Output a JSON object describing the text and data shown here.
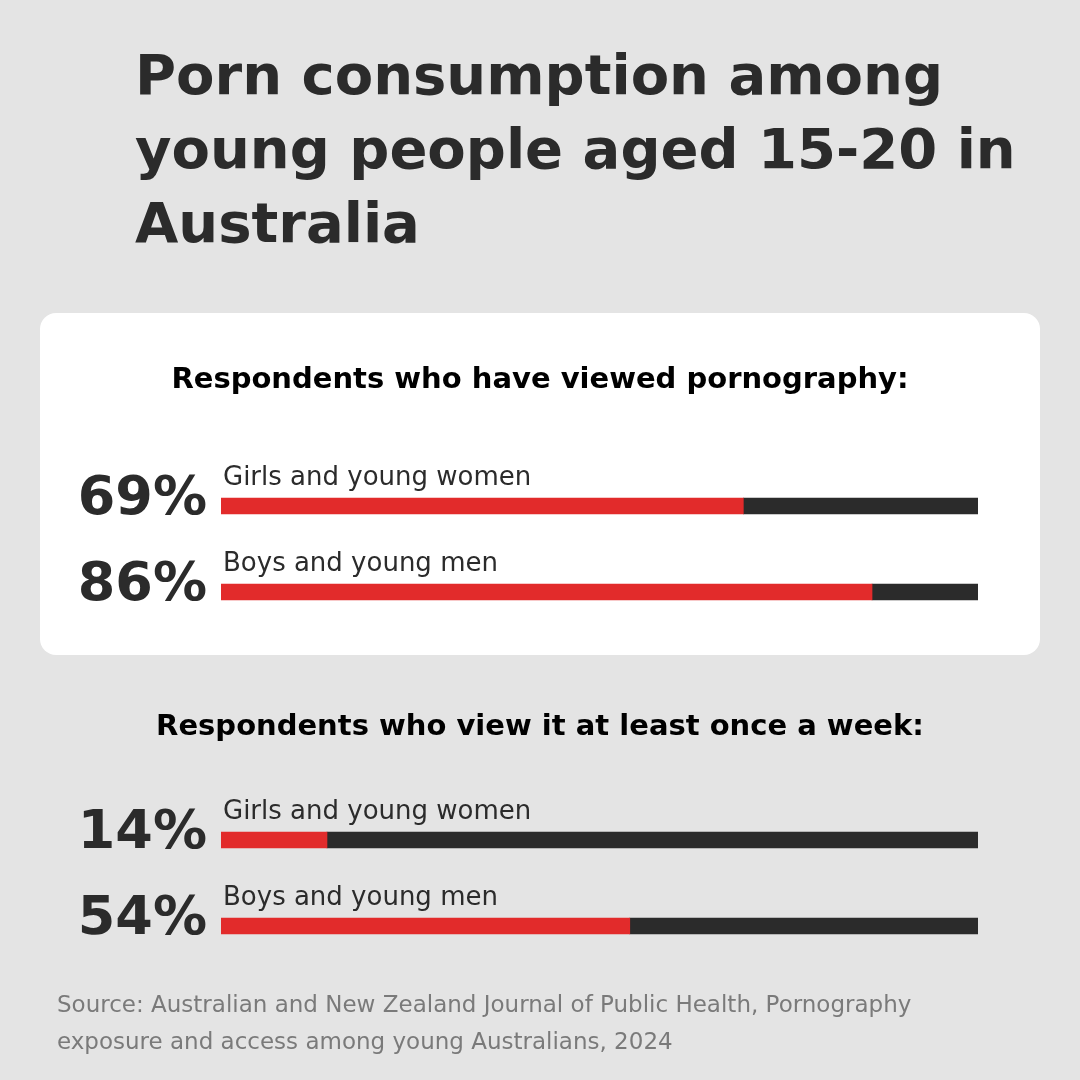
{
  "chart_data": [
    {
      "type": "bar",
      "title": "Porn consumption among young people aged 15-20 in Australia",
      "subtitle": "Respondents who have viewed pornography:",
      "orientation": "horizontal",
      "stacked": true,
      "categories": [
        "Girls and young women",
        "Boys and young men"
      ],
      "xlim": [
        0,
        100
      ],
      "tick_labels": false,
      "series": [
        {
          "color": "#e22b2b",
          "values": [
            69,
            86
          ],
          "value_labels": [
            "69%",
            "86%"
          ]
        },
        {
          "color": "#2b2b2b",
          "values": [
            31,
            14
          ]
        }
      ]
    },
    {
      "type": "bar",
      "title": "Respondents who view it at least once a week:",
      "orientation": "horizontal",
      "stacked": true,
      "categories": [
        "Girls and young women",
        "Boys and young men"
      ],
      "xlim": [
        0,
        100
      ],
      "tick_labels": false,
      "series": [
        {
          "color": "#e22b2b",
          "values": [
            14,
            54
          ],
          "value_labels": [
            "14%",
            "54%"
          ]
        },
        {
          "color": "#2b2b2b",
          "values": [
            86,
            46
          ]
        }
      ],
      "annotations": [
        "Source: Australian and New Zealand Journal of Public Health, Pornography exposure and access among young Australians, 2024"
      ]
    }
  ]
}
